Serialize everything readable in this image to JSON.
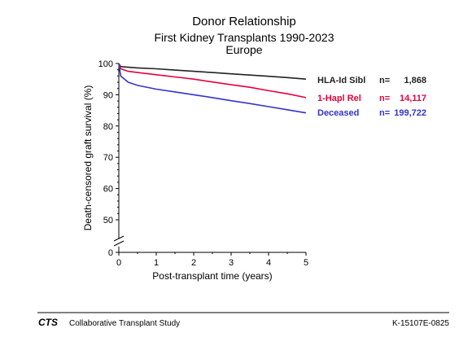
{
  "chart_data": {
    "type": "line",
    "title": "Donor Relationship",
    "subtitle": "First Kidney Transplants 1990-2023",
    "region": "Europe",
    "xlabel": "Post-transplant time (years)",
    "ylabel": "Death-censored graft survival (%)",
    "xlim": [
      0,
      5
    ],
    "ylim": [
      50,
      100
    ],
    "axis_break": true,
    "x_ticks": [
      "0",
      "1",
      "2",
      "3",
      "4",
      "5"
    ],
    "y_ticks": [
      "0",
      "50",
      "60",
      "70",
      "80",
      "90",
      "100"
    ],
    "grid": false,
    "legend_position": "right",
    "series": [
      {
        "name": "HLA-Id Sibl",
        "n_label": "n=",
        "n": "1,868",
        "color": "#222222",
        "x": [
          0,
          0.05,
          0.25,
          0.5,
          1,
          1.5,
          2,
          2.5,
          3,
          3.5,
          4,
          4.5,
          5
        ],
        "y": [
          100,
          99.0,
          98.8,
          98.6,
          98.3,
          97.9,
          97.5,
          97.1,
          96.7,
          96.3,
          95.9,
          95.5,
          95.0
        ]
      },
      {
        "name": "1-Hapl Rel",
        "n_label": "n=",
        "n": "14,117",
        "color": "#e8003c",
        "x": [
          0,
          0.05,
          0.25,
          0.5,
          1,
          1.5,
          2,
          2.5,
          3,
          3.5,
          4,
          4.5,
          5
        ],
        "y": [
          100,
          98.3,
          97.5,
          97.1,
          96.4,
          95.7,
          95.0,
          94.1,
          93.2,
          92.4,
          91.3,
          90.3,
          89.1
        ]
      },
      {
        "name": "Deceased",
        "n_label": "n=",
        "n": "199,722",
        "color": "#3333cc",
        "x": [
          0,
          0.05,
          0.25,
          0.5,
          1,
          1.5,
          2,
          2.5,
          3,
          3.5,
          4,
          4.5,
          5
        ],
        "y": [
          100,
          96.0,
          94.0,
          93.0,
          91.8,
          90.9,
          90.0,
          89.1,
          88.1,
          87.2,
          86.2,
          85.2,
          84.2
        ]
      }
    ]
  },
  "footer": {
    "logo_text": "CTS",
    "org_name": "Collaborative Transplant Study",
    "report_id": "K-15107E-0825"
  }
}
